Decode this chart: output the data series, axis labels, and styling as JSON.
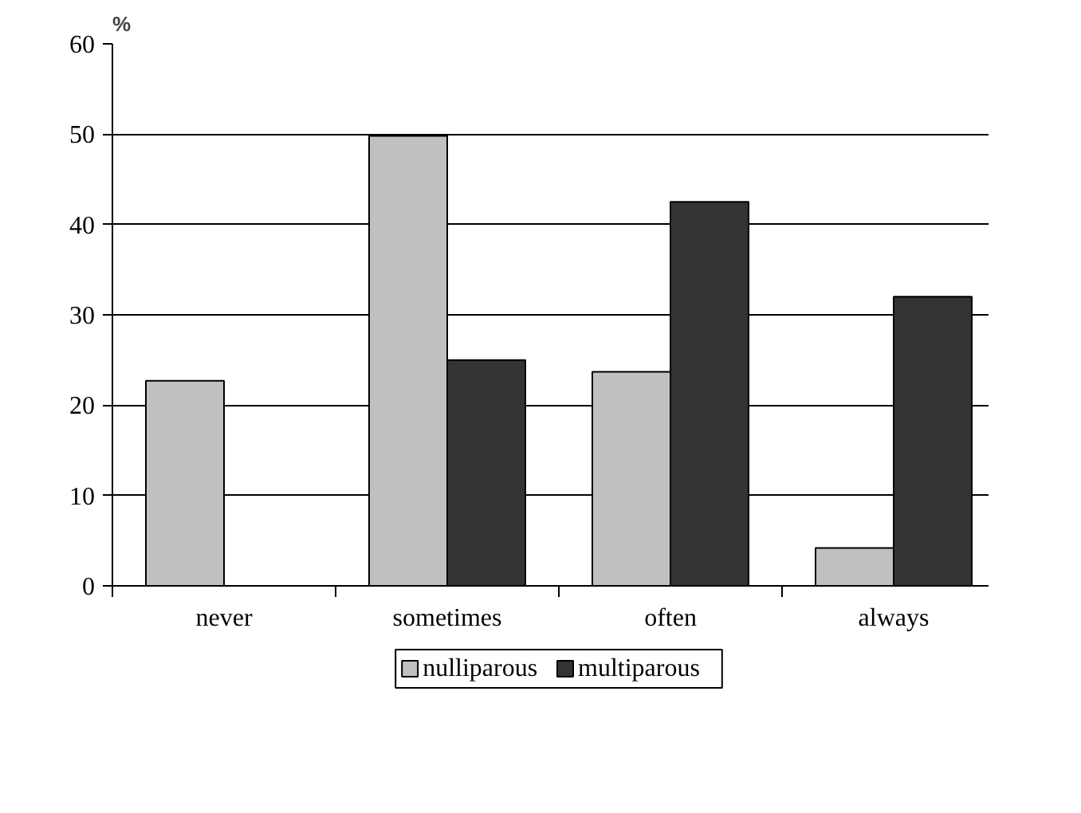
{
  "chart_data": {
    "type": "bar",
    "ylabel": "%",
    "categories": [
      "never",
      "sometimes",
      "often",
      "always"
    ],
    "series": [
      {
        "name": "nulliparous",
        "color": "#c0c0c0",
        "values": [
          22.7,
          49.8,
          23.7,
          4.2
        ]
      },
      {
        "name": "multiparous",
        "color": "#333333",
        "values": [
          null,
          25,
          42.5,
          32
        ]
      }
    ],
    "ylim": [
      0,
      60
    ],
    "yticks": [
      0,
      10,
      20,
      30,
      40,
      50,
      60
    ],
    "grid": "y",
    "legend": "bottom"
  }
}
